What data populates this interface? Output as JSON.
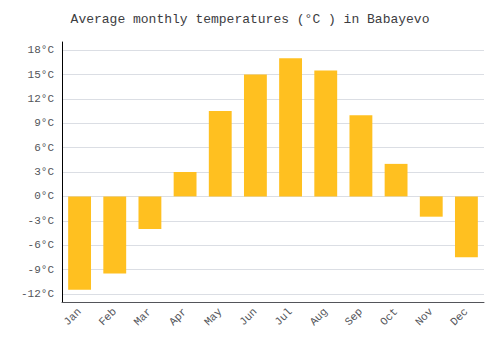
{
  "chart_data": {
    "type": "bar",
    "title": "Average monthly temperatures (°C ) in Babayevo",
    "categories": [
      "Jan",
      "Feb",
      "Mar",
      "Apr",
      "May",
      "Jun",
      "Jul",
      "Aug",
      "Sep",
      "Oct",
      "Nov",
      "Dec"
    ],
    "values": [
      -11.5,
      -9.5,
      -4.0,
      3.0,
      10.5,
      15.0,
      17.0,
      15.5,
      10.0,
      4.0,
      -2.5,
      -7.5
    ],
    "color": "#FFC020",
    "ylim": [
      -13,
      19
    ],
    "yticks": [
      {
        "value": -12,
        "label": "-12°C"
      },
      {
        "value": -9,
        "label": "-9°C"
      },
      {
        "value": -6,
        "label": "-6°C"
      },
      {
        "value": -3,
        "label": "-3°C"
      },
      {
        "value": 0,
        "label": "0°C"
      },
      {
        "value": 3,
        "label": "3°C"
      },
      {
        "value": 6,
        "label": "6°C"
      },
      {
        "value": 9,
        "label": "9°C"
      },
      {
        "value": 12,
        "label": "12°C"
      },
      {
        "value": 15,
        "label": "15°C"
      },
      {
        "value": 18,
        "label": "18°C"
      }
    ],
    "grid": true
  }
}
